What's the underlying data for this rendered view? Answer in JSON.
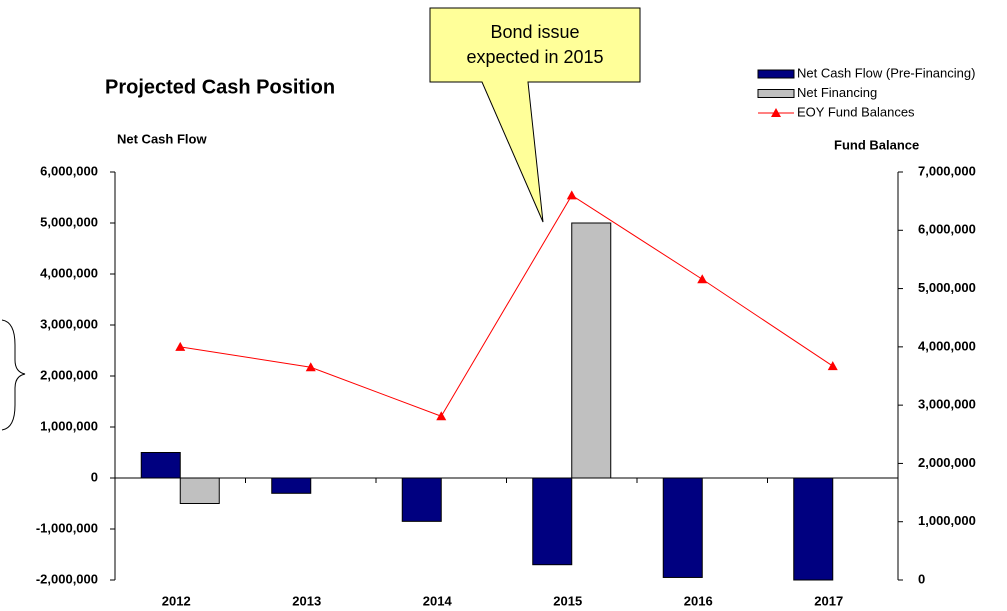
{
  "chart_data": {
    "type": "bar-line",
    "title": "Projected Cash Position",
    "y_label": "Net Cash Flow",
    "y2_label": "Fund Balance",
    "annotation": [
      "Bond issue",
      "expected in 2015"
    ],
    "categories": [
      "2012",
      "2013",
      "2014",
      "2015",
      "2016",
      "2017"
    ],
    "series": [
      {
        "name": "Net Cash Flow (Pre-Financing)",
        "type": "bar",
        "color": "#000080",
        "values": [
          500000,
          -300000,
          -850000,
          -1700000,
          -1950000,
          -2000000
        ]
      },
      {
        "name": "Net Financing",
        "type": "bar",
        "color": "#c0c0c0",
        "values": [
          -500000,
          0,
          0,
          5000000,
          0,
          0
        ]
      },
      {
        "name": "EOY Fund Balances",
        "type": "line",
        "axis": "y2",
        "color": "#ff0000",
        "values": [
          4000000,
          3650000,
          2810000,
          6600000,
          5160000,
          3670000
        ]
      }
    ],
    "ylim": [
      -2000000,
      6000000
    ],
    "yticks": [
      {
        "value": -2000000,
        "label": "-2,000,000"
      },
      {
        "value": -1000000,
        "label": "-1,000,000"
      },
      0,
      {
        "value": 1000000,
        "label": "1,000,000"
      },
      {
        "value": 2000000,
        "label": "2,000,000"
      },
      {
        "value": 3000000,
        "label": "3,000,000"
      },
      {
        "value": 4000000,
        "label": "4,000,000"
      },
      {
        "value": 5000000,
        "label": "5,000,000"
      },
      {
        "value": 6000000,
        "label": "6,000,000"
      }
    ],
    "y2lim": [
      0,
      7000000
    ],
    "y2ticks": [
      0,
      {
        "value": 1000000,
        "label": "1,000,000"
      },
      {
        "value": 2000000,
        "label": "2,000,000"
      },
      {
        "value": 3000000,
        "label": "3,000,000"
      },
      {
        "value": 4000000,
        "label": "4,000,000"
      },
      {
        "value": 5000000,
        "label": "5,000,000"
      },
      {
        "value": 6000000,
        "label": "6,000,000"
      },
      {
        "value": 7000000,
        "label": "7,000,000"
      }
    ],
    "legend": "top-right",
    "grid": false
  }
}
